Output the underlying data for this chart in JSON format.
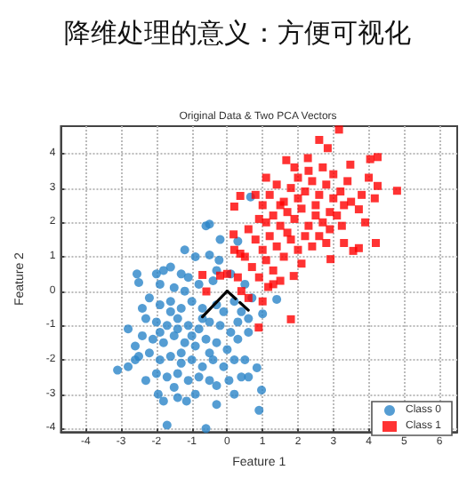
{
  "chart_data": {
    "type": "scatter",
    "title": "降维处理的意义：方便可视化",
    "subtitle": "Original Data & Two PCA Vectors",
    "xlabel": "Feature 1",
    "ylabel": "Feature 2",
    "xlim": [
      -4.7,
      6.5
    ],
    "xticks": [
      -4,
      -3,
      -2,
      -1,
      0,
      1,
      2,
      3,
      4,
      5,
      6
    ],
    "ylim": [
      -4.1,
      4.8
    ],
    "yticks": [
      -4,
      -3,
      -2,
      -1,
      0,
      1,
      2,
      3,
      4
    ],
    "grid": true,
    "legend": "bottom right",
    "series": [
      {
        "name": "Class 0",
        "color": "#2a85c8",
        "marker": "circle",
        "x": [
          -3.1,
          -2.8,
          -2.6,
          -2.5,
          -2.55,
          -2.5,
          -1.95,
          -1.7,
          -0.6,
          -0.6,
          -0.5,
          -0.9,
          -0.5,
          -0.23,
          0.3,
          0.66,
          -1.15,
          -1.4,
          -0.3,
          0.05,
          0.6,
          1.4,
          1.0,
          0.84,
          0.97,
          0.9,
          0.5,
          0.6,
          -2,
          -1.8,
          -1.6,
          -1.3,
          -1.1,
          -1.9,
          -1.5,
          -1.2,
          -0.8,
          -0.4,
          -2.2,
          -1.9,
          -1.6,
          -1.3,
          -1.0,
          -0.7,
          -0.3,
          0.2,
          0.4,
          -2.3,
          -2.0,
          -1.7,
          -1.4,
          -1.1,
          -0.8,
          -0.5,
          -0.2,
          0.1,
          -2.4,
          -2.1,
          -1.8,
          -1.5,
          -1.2,
          -0.9,
          -0.6,
          -0.3,
          0.0,
          0.3,
          -2.2,
          -1.9,
          -1.6,
          -1.3,
          -1.0,
          -0.7,
          -0.4,
          -0.1,
          0.2,
          -2.0,
          -1.7,
          -1.4,
          -1.1,
          -0.8,
          -0.5,
          -2.3,
          -1.5,
          -0.9,
          -1.9,
          -1.4,
          -0.7,
          -1.6,
          -2.4,
          -0.1,
          0.1,
          -0.3,
          0.5,
          0.7,
          0.3,
          -2.6,
          -2.8,
          -1.2,
          -0.2,
          -1.0,
          -1.3,
          -0.5,
          0.4,
          -1.8,
          -0.3,
          0.2,
          0.6
        ],
        "values": [
          -2.3,
          -2.2,
          -2.0,
          -1.9,
          0.5,
          0.25,
          -3.0,
          -3.9,
          -4.0,
          1.9,
          1.95,
          1.0,
          1.05,
          0.9,
          1.45,
          2.74,
          -3.2,
          -3.1,
          -2.75,
          -2.6,
          -2.5,
          -0.24,
          -0.66,
          -2.23,
          -2.88,
          -3.47,
          -2.0,
          -1.2,
          0.5,
          0.6,
          0.7,
          0.5,
          0.4,
          0.2,
          0.1,
          0.0,
          0.2,
          0.3,
          -0.2,
          -0.4,
          -0.3,
          -0.5,
          -0.3,
          -0.5,
          -0.4,
          -0.3,
          -0.6,
          -0.8,
          -0.9,
          -1.0,
          -0.8,
          -1.0,
          -1.1,
          -0.9,
          -1.0,
          -1.2,
          -1.3,
          -1.4,
          -1.5,
          -1.3,
          -1.5,
          -1.6,
          -1.4,
          -1.5,
          -1.7,
          -1.4,
          -1.8,
          -2.0,
          -1.9,
          -2.1,
          -2.0,
          -2.2,
          -2.0,
          -2.2,
          -2.0,
          -2.4,
          -2.5,
          -2.4,
          -2.6,
          -2.5,
          -2.6,
          -2.6,
          -2.8,
          -3.0,
          -1.2,
          -1.1,
          -0.8,
          -0.6,
          -0.5,
          -0.6,
          0.5,
          0.6,
          0.2,
          -0.2,
          -0.9,
          -1.6,
          -1.1,
          1.2,
          1.5,
          -1.3,
          -1.8,
          -1.8,
          -2.5,
          -3.2,
          -3.3,
          -3.0,
          -0.8
        ]
      },
      {
        "name": "Class 1",
        "color": "#ff0000",
        "marker": "square",
        "x": [
          3.16,
          2.6,
          2.84,
          2.28,
          1.67,
          3.48,
          4.04,
          4.25,
          4.8,
          4.17,
          4.25,
          3.72,
          3.24,
          3.72,
          3.56,
          2.92,
          1.88,
          1.8,
          0.89,
          1.16,
          0.37,
          0.2,
          -0.59,
          -0.7,
          0.18,
          0.37,
          1.0,
          1.2,
          1.4,
          1.6,
          1.8,
          2.0,
          2.2,
          2.4,
          2.6,
          2.8,
          3.0,
          3.2,
          3.4,
          1.1,
          1.3,
          1.5,
          1.7,
          1.9,
          2.1,
          2.3,
          2.5,
          2.7,
          2.9,
          3.1,
          3.5,
          3.8,
          0.6,
          0.8,
          1.0,
          1.2,
          1.4,
          1.6,
          1.8,
          2.0,
          2.2,
          2.4,
          2.6,
          2.8,
          0.5,
          0.7,
          0.9,
          1.1,
          1.3,
          1.5,
          0.3,
          0.0,
          -0.2,
          0.4,
          0.6,
          1.0,
          2.0,
          2.3,
          1.9,
          2.7,
          3.0,
          3.3,
          4.0,
          3.9,
          4.2,
          3.3,
          2.1,
          1.5,
          0.9,
          1.1,
          0.8,
          2.5,
          1.7,
          2.9,
          0.2,
          1.3
        ],
        "values": [
          4.7,
          4.4,
          4.16,
          3.87,
          3.81,
          3.68,
          3.84,
          3.9,
          2.92,
          2.7,
          3.06,
          2.38,
          1.9,
          1.25,
          1.17,
          0.93,
          0.44,
          -0.82,
          -1.06,
          0.12,
          2.77,
          2.46,
          -0.01,
          0.47,
          1.65,
          1.09,
          2.5,
          2.8,
          3.1,
          2.6,
          3.0,
          3.3,
          2.9,
          3.2,
          2.8,
          3.1,
          2.7,
          2.9,
          3.2,
          2.0,
          2.2,
          1.9,
          2.3,
          2.1,
          2.4,
          1.9,
          2.2,
          2.0,
          2.3,
          2.2,
          2.6,
          2.8,
          1.8,
          1.5,
          1.2,
          1.6,
          1.3,
          1.0,
          1.5,
          1.2,
          1.6,
          1.3,
          1.6,
          1.4,
          1.0,
          0.7,
          0.4,
          0.9,
          0.6,
          0.3,
          0.4,
          0.5,
          0.45,
          0.0,
          -0.2,
          -0.3,
          2.7,
          3.5,
          3.6,
          3.6,
          3.4,
          2.5,
          3.3,
          2.0,
          1.4,
          1.4,
          0.8,
          2.5,
          2.1,
          3.3,
          2.8,
          2.5,
          1.7,
          1.8,
          1.2,
          0.2
        ]
      },
      {
        "type": "line",
        "color": "#000000",
        "line_style": "solid",
        "marker": "none",
        "x": [
          -0.7,
          0
        ],
        "values": [
          -0.75,
          0
        ]
      },
      {
        "type": "line",
        "color": "#000000",
        "line_style": "dashed",
        "marker": "none",
        "x": [
          0,
          0.7
        ],
        "values": [
          0,
          -0.65
        ]
      }
    ]
  }
}
